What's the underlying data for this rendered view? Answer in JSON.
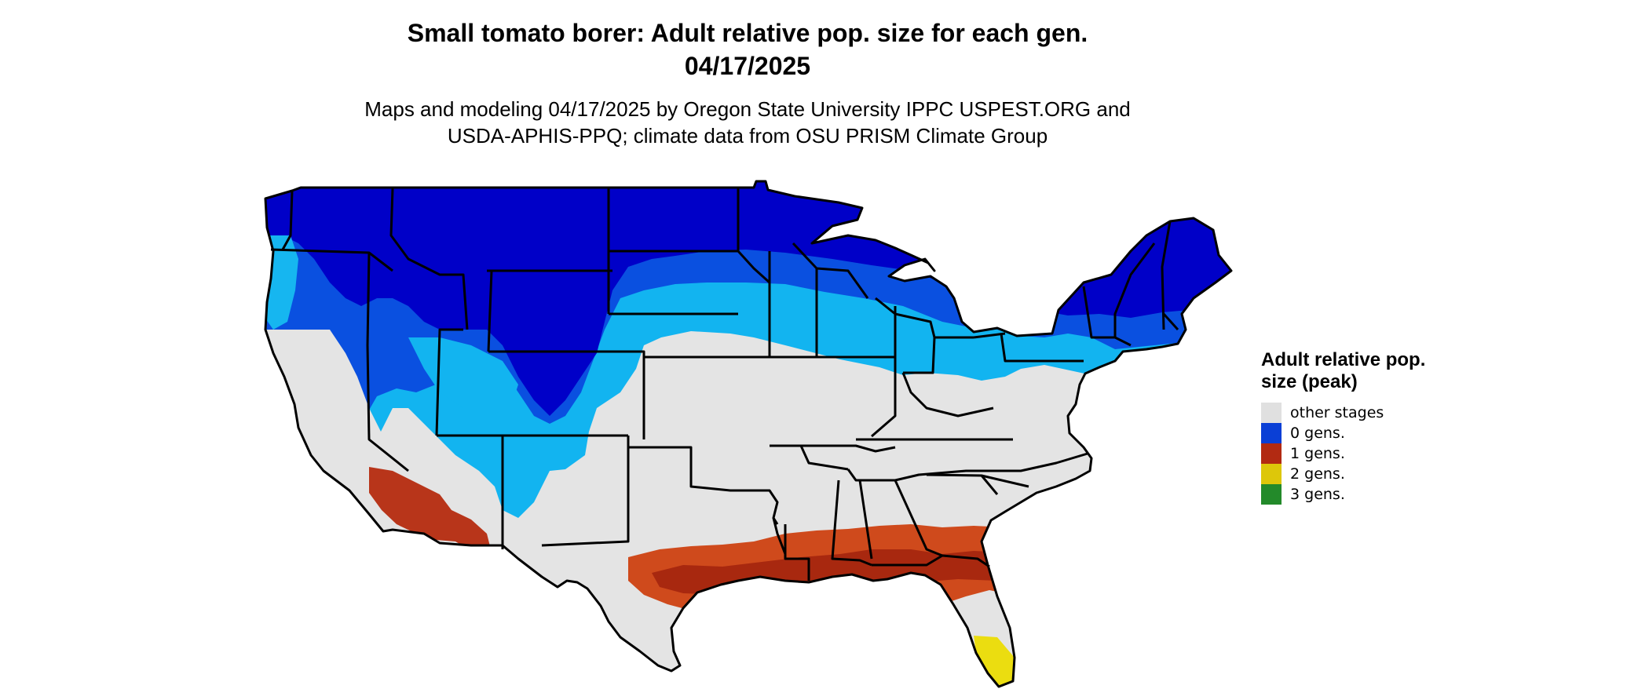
{
  "title": {
    "line1": "Small tomato borer: Adult relative pop. size for each gen.",
    "line2": "04/17/2025"
  },
  "subtitle": {
    "line1": "Maps and modeling 04/17/2025 by Oregon State University IPPC USPEST.ORG and",
    "line2": "USDA-APHIS-PPQ; climate data from OSU PRISM Climate Group"
  },
  "legend": {
    "title": "Adult relative pop. size (peak)",
    "items": [
      {
        "label": "other stages",
        "color": "#e0e0e0"
      },
      {
        "label": "0 gens.",
        "color": "#0a3fd6"
      },
      {
        "label": "1 gens.",
        "color": "#b22a12"
      },
      {
        "label": "2 gens.",
        "color": "#ddc70a"
      },
      {
        "label": "3 gens.",
        "color": "#238a2a"
      }
    ]
  },
  "map": {
    "region": "contiguous-united-states",
    "colors": {
      "other_stages": "#e4e4e4",
      "zero_gens_dark": "#0000c8",
      "zero_gens_mid": "#0a50e0",
      "zero_gens_light": "#12b4f0",
      "one_gen_dark": "#a62a10",
      "one_gen_light": "#cf4a1c",
      "two_gens": "#ebdd10",
      "state_border": "#000000"
    }
  }
}
